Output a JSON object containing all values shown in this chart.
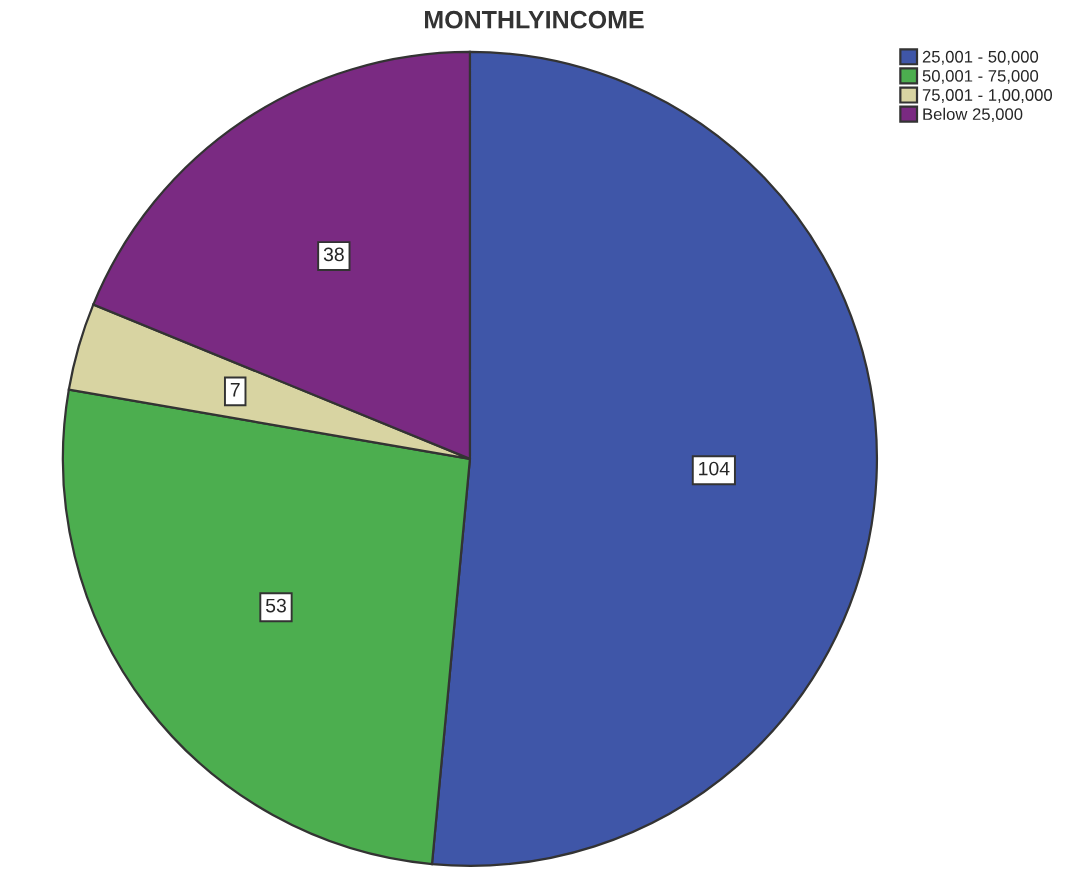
{
  "chart_data": {
    "type": "pie",
    "title": "MONTHLYINCOME",
    "categories": [
      "25,001 - 50,000",
      "50,001 - 75,000",
      "75,001 - 1,00,000",
      "Below 25,000"
    ],
    "values": [
      104,
      53,
      7,
      38
    ],
    "colors": [
      "#3f56a8",
      "#4cae4f",
      "#d8d4a2",
      "#7a2a82"
    ],
    "data_labels": true,
    "legend": "top right"
  }
}
